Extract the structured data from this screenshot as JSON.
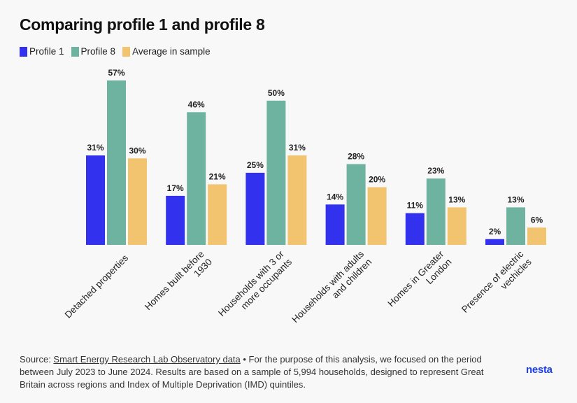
{
  "title": "Comparing profile 1 and profile 8",
  "legend": [
    {
      "label": "Profile 1",
      "color": "#3131ee"
    },
    {
      "label": "Profile 8",
      "color": "#6eb3a0"
    },
    {
      "label": "Average in sample",
      "color": "#f2c46f"
    }
  ],
  "chart_data": {
    "type": "bar",
    "title": "Comparing profile 1 and profile 8",
    "categories": [
      "Detached properties",
      "Homes built before 1930",
      "Households with 3 or more occupants",
      "Households with adults and children",
      "Homes in Greater London",
      "Presence of electric vechicles"
    ],
    "category_lines": [
      [
        "Detached properties"
      ],
      [
        "Homes built before",
        "1930"
      ],
      [
        "Households with 3 or",
        "more occupants"
      ],
      [
        "Households with adults",
        "and children"
      ],
      [
        "Homes in Greater",
        "London"
      ],
      [
        "Presence of electric",
        "vechicles"
      ]
    ],
    "series": [
      {
        "name": "Profile 1",
        "color": "#3131ee",
        "values": [
          31,
          17,
          25,
          14,
          11,
          2
        ],
        "labels": [
          "31%",
          "17%",
          "25%",
          "14%",
          "11%",
          "2%"
        ]
      },
      {
        "name": "Profile 8",
        "color": "#6eb3a0",
        "values": [
          57,
          46,
          50,
          28,
          23,
          13
        ],
        "labels": [
          "57%",
          "46%",
          "50%",
          "28%",
          "23%",
          "13%"
        ]
      },
      {
        "name": "Average in sample",
        "color": "#f2c46f",
        "values": [
          30,
          21,
          31,
          20,
          13,
          6
        ],
        "labels": [
          "30%",
          "21%",
          "31%",
          "20%",
          "13%",
          "6%"
        ]
      }
    ],
    "unit": "%",
    "ylim": [
      0,
      57
    ],
    "grid": false,
    "legend_position": "top-left"
  },
  "source": {
    "prefix": "Source: ",
    "link_text": "Smart Energy Research Lab Observatory data",
    "text": " • For the purpose of this analysis, we focused on the period between July 2023 to June 2024. Results are based on a sample of 5,994 households, designed to represent Great Britain across regions and Index of Multiple Deprivation (IMD) quintiles."
  },
  "logo": "nesta"
}
